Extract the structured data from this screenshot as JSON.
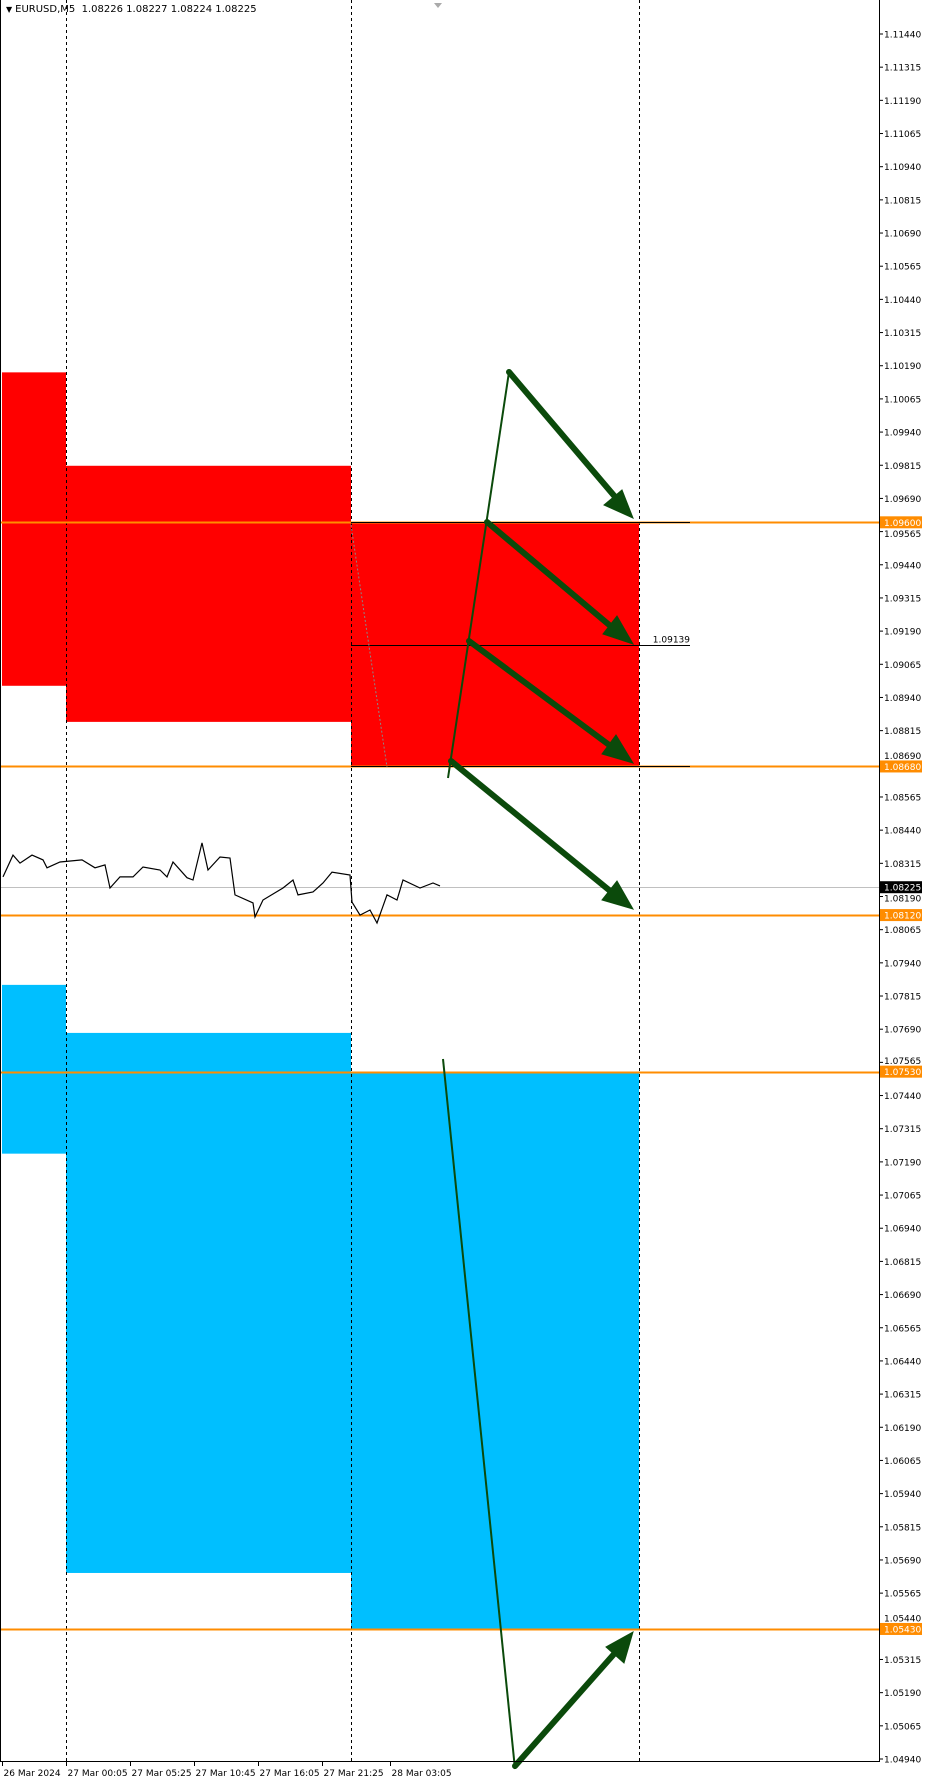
{
  "header": {
    "symbol": "EURUSD,M5",
    "ohlc": "1.08226 1.08227 1.08224 1.08225",
    "menu_icon": "triangle-down-icon"
  },
  "chart_data": {
    "type": "line",
    "title": "EURUSD,M5",
    "ylim": [
      1.0494,
      1.1144
    ],
    "grid": false,
    "y_ticks": [
      "1.11440",
      "1.11315",
      "1.11190",
      "1.11065",
      "1.10940",
      "1.10815",
      "1.10690",
      "1.10565",
      "1.10440",
      "1.10315",
      "1.10190",
      "1.10065",
      "1.09940",
      "1.09815",
      "1.09690",
      "1.09565",
      "1.09440",
      "1.09315",
      "1.09190",
      "1.09065",
      "1.08940",
      "1.08815",
      "1.08690",
      "1.08565",
      "1.08440",
      "1.08315",
      "1.08190",
      "1.08065",
      "1.07940",
      "1.07815",
      "1.07690",
      "1.07565",
      "1.07440",
      "1.07315",
      "1.07190",
      "1.07065",
      "1.06940",
      "1.06815",
      "1.06690",
      "1.06565",
      "1.06440",
      "1.06315",
      "1.06190",
      "1.06065",
      "1.05940",
      "1.05815",
      "1.05690",
      "1.05565",
      "1.05440",
      "1.05315",
      "1.05190",
      "1.05065",
      "1.04940"
    ],
    "x_ticks": [
      {
        "label": "26 Mar 2024",
        "time": "26 Mar 18:45"
      },
      {
        "label": "27 Mar 00:05",
        "time": "27 Mar 00:05"
      },
      {
        "label": "27 Mar 05:25",
        "time": "27 Mar 05:25"
      },
      {
        "label": "27 Mar 10:45",
        "time": "27 Mar 10:45"
      },
      {
        "label": "27 Mar 16:05",
        "time": "27 Mar 16:05"
      },
      {
        "label": "27 Mar 21:25",
        "time": "27 Mar 21:25"
      },
      {
        "label": "28 Mar 03:05",
        "time": "28 Mar 03:05"
      }
    ],
    "period_separators": [
      "27 Mar 00:05",
      "27 Mar 23:50",
      "28 Mar 23:50"
    ],
    "series": [
      {
        "color": "#000000",
        "points": [
          [
            "26 Mar 18:50",
            1.08264
          ],
          [
            "26 Mar 19:40",
            1.08346
          ],
          [
            "26 Mar 20:15",
            1.08316
          ],
          [
            "26 Mar 21:15",
            1.08346
          ],
          [
            "26 Mar 22:10",
            1.08328
          ],
          [
            "26 Mar 22:30",
            1.08298
          ],
          [
            "26 Mar 23:35",
            1.0832
          ],
          [
            "27 Mar 01:25",
            1.08328
          ],
          [
            "27 Mar 02:30",
            1.08298
          ],
          [
            "27 Mar 03:20",
            1.08309
          ],
          [
            "27 Mar 03:45",
            1.08222
          ],
          [
            "27 Mar 04:35",
            1.08264
          ],
          [
            "27 Mar 05:40",
            1.08264
          ],
          [
            "27 Mar 06:30",
            1.08301
          ],
          [
            "27 Mar 07:55",
            1.0829
          ],
          [
            "27 Mar 08:30",
            1.08264
          ],
          [
            "27 Mar 09:00",
            1.0832
          ],
          [
            "27 Mar 10:10",
            1.08261
          ],
          [
            "27 Mar 10:40",
            1.08252
          ],
          [
            "27 Mar 11:25",
            1.08392
          ],
          [
            "27 Mar 11:55",
            1.0829
          ],
          [
            "27 Mar 12:55",
            1.08339
          ],
          [
            "27 Mar 13:45",
            1.08335
          ],
          [
            "27 Mar 14:10",
            1.08196
          ],
          [
            "27 Mar 15:40",
            1.08166
          ],
          [
            "27 Mar 15:50",
            1.08113
          ],
          [
            "27 Mar 16:30",
            1.08177
          ],
          [
            "27 Mar 18:10",
            1.08222
          ],
          [
            "27 Mar 19:00",
            1.08252
          ],
          [
            "27 Mar 19:25",
            1.08196
          ],
          [
            "27 Mar 20:40",
            1.08207
          ],
          [
            "27 Mar 21:30",
            1.08241
          ],
          [
            "27 Mar 22:15",
            1.08282
          ],
          [
            "27 Mar 23:45",
            1.08271
          ],
          [
            "27 Mar 23:55",
            1.08169
          ],
          [
            "28 Mar 00:35",
            1.0812
          ],
          [
            "28 Mar 01:25",
            1.08139
          ],
          [
            "28 Mar 02:00",
            1.0809
          ],
          [
            "28 Mar 02:50",
            1.08196
          ],
          [
            "28 Mar 03:40",
            1.08177
          ],
          [
            "28 Mar 04:10",
            1.08252
          ],
          [
            "28 Mar 05:35",
            1.08222
          ],
          [
            "28 Mar 06:40",
            1.08241
          ],
          [
            "28 Mar 07:15",
            1.0823
          ]
        ]
      }
    ],
    "current_price": {
      "value": 1.08225,
      "label": "1.08225",
      "color": "#000000"
    },
    "zones": [
      {
        "kind": "supply",
        "color": "#ff0000",
        "from": "26 Mar 18:45",
        "to": "27 Mar 00:05",
        "top": 1.10165,
        "bottom": 1.08984
      },
      {
        "kind": "supply",
        "color": "#ff0000",
        "from": "27 Mar 00:05",
        "to": "27 Mar 23:50",
        "top": 1.09813,
        "bottom": 1.08848
      },
      {
        "kind": "supply",
        "color": "#ff0000",
        "from": "27 Mar 23:50",
        "to": "28 Mar 23:50",
        "top": 1.096,
        "bottom": 1.0868
      },
      {
        "kind": "demand",
        "color": "#00bfff",
        "from": "26 Mar 18:45",
        "to": "27 Mar 00:05",
        "top": 1.07857,
        "bottom": 1.07221
      },
      {
        "kind": "demand",
        "color": "#00bfff",
        "from": "27 Mar 00:05",
        "to": "27 Mar 23:50",
        "top": 1.07676,
        "bottom": 1.05641
      },
      {
        "kind": "demand",
        "color": "#00bfff",
        "from": "27 Mar 23:50",
        "to": "28 Mar 23:50",
        "top": 1.0753,
        "bottom": 1.0543
      }
    ],
    "levels": [
      {
        "value": 1.096,
        "label": "1.09600",
        "color": "#ff8c00"
      },
      {
        "value": 1.0868,
        "label": "1.08680",
        "color": "#ff8c00"
      },
      {
        "value": 1.0812,
        "label": "1.08120",
        "color": "#ff8c00"
      },
      {
        "value": 1.0753,
        "label": "1.07530",
        "color": "#ff8c00"
      },
      {
        "value": 1.0543,
        "label": "1.05430",
        "color": "#ff8c00"
      }
    ],
    "mid_lines": [
      {
        "value": 1.096,
        "label": ""
      },
      {
        "value": 1.09139,
        "label": "1.09139"
      },
      {
        "value": 1.0868,
        "label": ""
      }
    ],
    "arrow_color": "#0b4a0b"
  }
}
